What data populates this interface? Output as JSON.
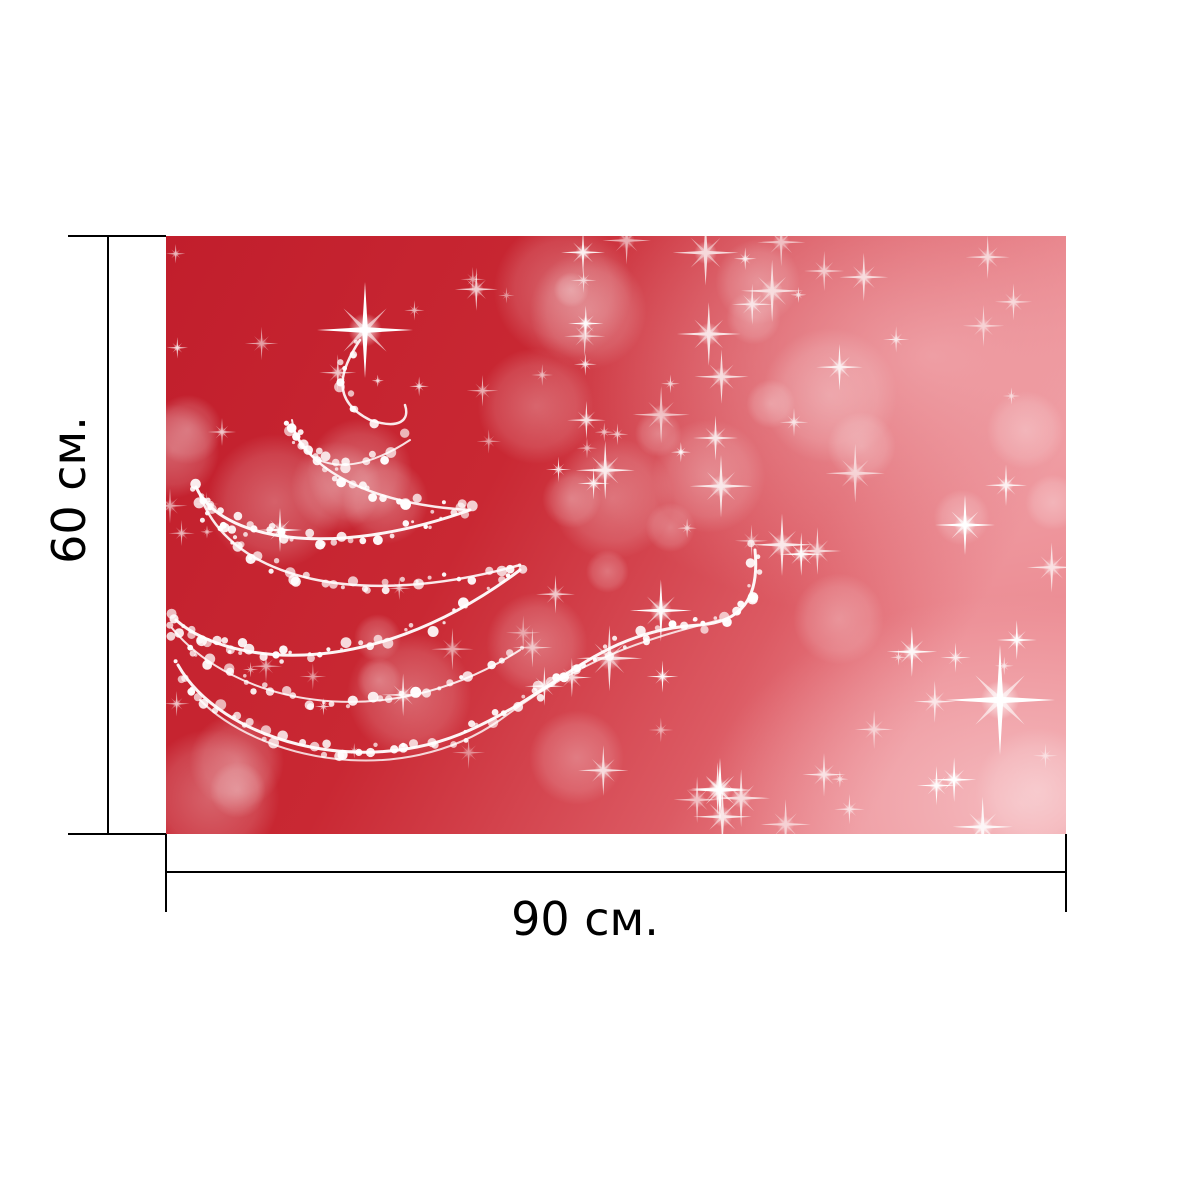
{
  "dimensions": {
    "width_label": "90 см.",
    "height_label": "60 см."
  },
  "colors": {
    "panel_base": "#c4232f",
    "panel_highlight": "#e98a92",
    "sparkle": "#ffffff",
    "dimension_line": "#000000"
  },
  "icons": {
    "tree": "sparkle-christmas-tree-icon",
    "star": "tree-top-star-icon"
  }
}
